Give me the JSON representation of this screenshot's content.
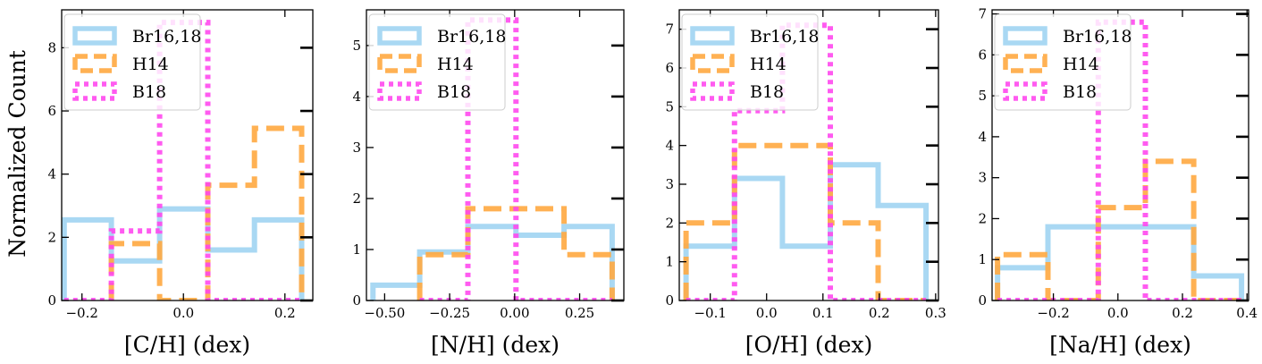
{
  "figure": {
    "ylabel": "Normalized Count"
  },
  "colors": {
    "Br16,18": "#a9d8f3",
    "H14": "#ffaa44",
    "B18": "#ff44ee"
  },
  "chart_data": [
    {
      "type": "histogram",
      "xlabel": "[C/H] (dex)",
      "xlim": [
        -0.24,
        0.255
      ],
      "ylim": [
        0,
        9.2
      ],
      "xticks": [
        -0.2,
        0.0,
        0.2
      ],
      "xtick_labels": [
        "−0.2",
        "0.0",
        "0.2"
      ],
      "yticks": [
        0,
        2,
        4,
        6,
        8
      ],
      "legend": [
        "Br16,18",
        "H14",
        "B18"
      ],
      "series": [
        {
          "name": "Br16,18",
          "edges": [
            -0.235,
            -0.142,
            -0.047,
            0.048,
            0.14,
            0.233
          ],
          "values": [
            2.55,
            1.25,
            2.9,
            1.6,
            2.55
          ]
        },
        {
          "name": "H14",
          "edges": [
            -0.142,
            -0.047,
            0.048,
            0.14,
            0.233
          ],
          "values": [
            1.8,
            0,
            3.65,
            5.45
          ]
        },
        {
          "name": "B18",
          "edges": [
            -0.235,
            -0.142,
            -0.047,
            0.048,
            0.14,
            0.233
          ],
          "values": [
            0,
            2.2,
            8.8,
            0,
            0
          ]
        }
      ]
    },
    {
      "type": "histogram",
      "xlabel": "[N/H] (dex)",
      "xlim": [
        -0.57,
        0.42
      ],
      "ylim": [
        0,
        5.7
      ],
      "xticks": [
        -0.5,
        -0.25,
        0.0,
        0.25
      ],
      "xtick_labels": [
        "−0.50",
        "−0.25",
        "0.00",
        "0.25"
      ],
      "yticks": [
        0,
        1,
        2,
        3,
        4,
        5
      ],
      "legend": [
        "Br16,18",
        "H14",
        "B18"
      ],
      "series": [
        {
          "name": "Br16,18",
          "edges": [
            -0.545,
            -0.365,
            -0.18,
            0.005,
            0.19,
            0.375
          ],
          "values": [
            0.3,
            0.95,
            1.45,
            1.28,
            1.45
          ]
        },
        {
          "name": "H14",
          "edges": [
            -0.365,
            -0.18,
            0.005,
            0.19,
            0.375
          ],
          "values": [
            0.9,
            1.8,
            1.8,
            0.9
          ]
        },
        {
          "name": "B18",
          "edges": [
            -0.365,
            -0.18,
            0.005,
            0.19,
            0.375
          ],
          "values": [
            0,
            5.5,
            0,
            0
          ]
        }
      ]
    },
    {
      "type": "histogram",
      "xlabel": "[O/H] (dex)",
      "xlim": [
        -0.155,
        0.305
      ],
      "ylim": [
        0,
        7.5
      ],
      "xticks": [
        -0.1,
        0.0,
        0.1,
        0.2,
        0.3
      ],
      "xtick_labels": [
        "−0.1",
        "0.0",
        "0.1",
        "0.2",
        "0.3"
      ],
      "yticks": [
        0,
        1,
        2,
        3,
        4,
        5,
        6,
        7
      ],
      "legend": [
        "Br16,18",
        "H14",
        "B18"
      ],
      "series": [
        {
          "name": "Br16,18",
          "edges": [
            -0.143,
            -0.057,
            0.028,
            0.113,
            0.198,
            0.283
          ],
          "values": [
            1.4,
            3.15,
            1.4,
            3.5,
            2.45
          ]
        },
        {
          "name": "H14",
          "edges": [
            -0.143,
            -0.057,
            0.028,
            0.113,
            0.198,
            0.283
          ],
          "values": [
            2.0,
            4.0,
            4.0,
            2.0,
            0
          ]
        },
        {
          "name": "B18",
          "edges": [
            -0.143,
            -0.057,
            0.028,
            0.113,
            0.198,
            0.283
          ],
          "values": [
            0,
            4.9,
            7.1,
            0,
            0
          ]
        }
      ]
    },
    {
      "type": "histogram",
      "xlabel": "[Na/H] (dex)",
      "xlim": [
        -0.39,
        0.405
      ],
      "ylim": [
        0,
        7.1
      ],
      "xticks": [
        -0.2,
        0.0,
        0.2,
        0.4
      ],
      "xtick_labels": [
        "−0.2",
        "0.0",
        "0.2",
        "0.4"
      ],
      "yticks": [
        0,
        1,
        2,
        3,
        4,
        5,
        6,
        7
      ],
      "legend": [
        "Br16,18",
        "H14",
        "B18"
      ],
      "series": [
        {
          "name": "Br16,18",
          "edges": [
            -0.373,
            -0.217,
            -0.061,
            0.085,
            0.235,
            0.383
          ],
          "values": [
            0.8,
            1.8,
            1.8,
            1.8,
            0.6
          ]
        },
        {
          "name": "H14",
          "edges": [
            -0.373,
            -0.217,
            -0.061,
            0.085,
            0.235,
            0.383
          ],
          "values": [
            1.12,
            0,
            2.27,
            3.4,
            0
          ]
        },
        {
          "name": "B18",
          "edges": [
            -0.373,
            -0.217,
            -0.061,
            0.085,
            0.235,
            0.383
          ],
          "values": [
            0,
            0,
            6.8,
            0,
            0
          ]
        }
      ]
    }
  ]
}
